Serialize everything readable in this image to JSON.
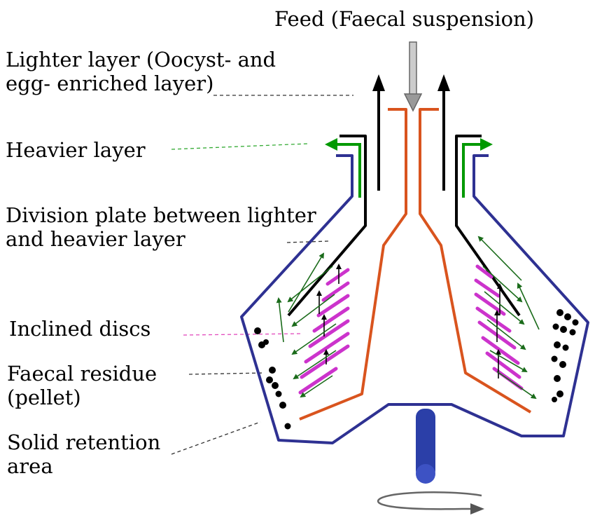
{
  "labels": {
    "feed": "Feed (Faecal suspension)",
    "lighter_layer": [
      "Lighter layer (Oocyst- and",
      "egg- enriched layer)"
    ],
    "heavier_layer": "Heavier layer",
    "division_plate": [
      "Division plate between lighter",
      "and heavier layer"
    ],
    "inclined_discs": "Inclined discs",
    "faecal_residue": [
      "Faecal residue",
      "(pellet)"
    ],
    "solid_retention": [
      "Solid retention",
      "area"
    ]
  },
  "colors": {
    "bowl_outline": "#2e3192",
    "feed_tube": "#d9541e",
    "division_plate": "#000000",
    "heavier_outlet": "#009900",
    "discs": "#cc33cc",
    "flow_arrows": "#1a6b1a",
    "leader_heavier": "#33aa33",
    "leader_discs": "#e24bbd",
    "leader_default": "#333333",
    "spindle": "#2b3fa8",
    "feed_arrow": "#999999"
  }
}
